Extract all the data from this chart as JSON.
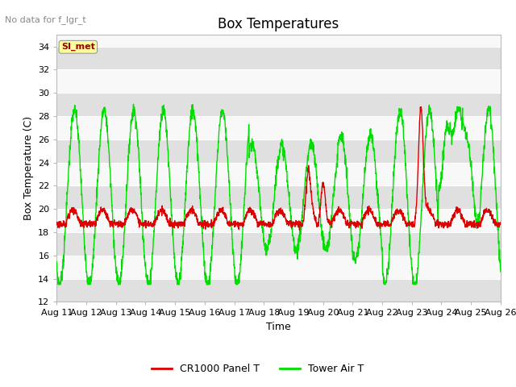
{
  "title": "Box Temperatures",
  "no_data_text": "No data for f_lgr_t",
  "ylabel": "Box Temperature (C)",
  "xlabel": "Time",
  "ylim": [
    12,
    35
  ],
  "yticks": [
    12,
    14,
    16,
    18,
    20,
    22,
    24,
    26,
    28,
    30,
    32,
    34
  ],
  "xtick_labels": [
    "Aug 11",
    "Aug 12",
    "Aug 13",
    "Aug 14",
    "Aug 15",
    "Aug 16",
    "Aug 17",
    "Aug 18",
    "Aug 19",
    "Aug 20",
    "Aug 21",
    "Aug 22",
    "Aug 23",
    "Aug 24",
    "Aug 25",
    "Aug 26"
  ],
  "legend_entries": [
    "CR1000 Panel T",
    "Tower Air T"
  ],
  "legend_colors": [
    "#dd0000",
    "#00dd00"
  ],
  "si_met_label": "SI_met",
  "si_met_color": "#990000",
  "si_met_bg": "#ffff99",
  "background_gray": "#e0e0e0",
  "background_white": "#f8f8f8",
  "title_fontsize": 12,
  "axis_fontsize": 9,
  "tick_fontsize": 8,
  "fig_bg": "#ffffff"
}
